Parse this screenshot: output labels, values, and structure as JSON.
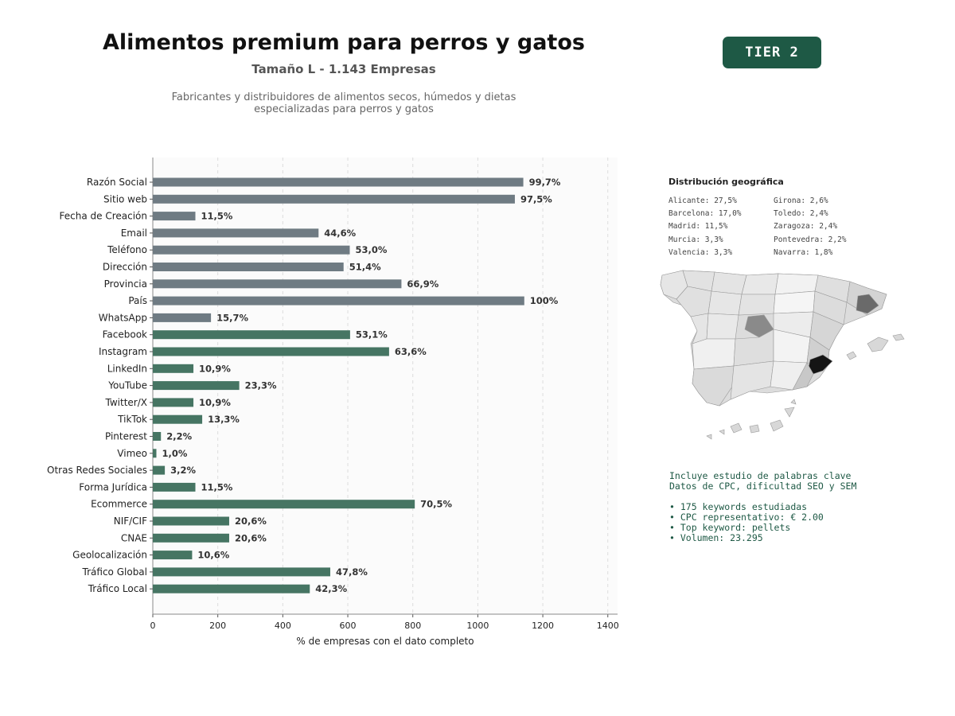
{
  "header": {
    "title": "Alimentos premium para perros y gatos",
    "subtitle": "Tamaño L - 1.143 Empresas",
    "description_line1": "Fabricantes y distribuidores de alimentos secos, húmedos y dietas",
    "description_line2": "especializadas para perros y gatos",
    "tier_badge": "TIER 2"
  },
  "chart_data": {
    "type": "bar",
    "orientation": "horizontal",
    "categories": [
      "Razón Social",
      "Sitio web",
      "Fecha de Creación",
      "Email",
      "Teléfono",
      "Dirección",
      "Provincia",
      "País",
      "WhatsApp",
      "Facebook",
      "Instagram",
      "LinkedIn",
      "YouTube",
      "Twitter/X",
      "TikTok",
      "Pinterest",
      "Vimeo",
      "Otras Redes Sociales",
      "Forma Jurídica",
      "Ecommerce",
      "NIF/CIF",
      "CNAE",
      "Geolocalización",
      "Tráfico Global",
      "Tráfico Local"
    ],
    "values": [
      1140,
      1114,
      131,
      510,
      606,
      587,
      765,
      1143,
      179,
      607,
      727,
      125,
      266,
      125,
      152,
      25,
      11,
      37,
      131,
      806,
      235,
      235,
      121,
      546,
      483
    ],
    "labels": [
      "99,7%",
      "97,5%",
      "11,5%",
      "44,6%",
      "53,0%",
      "51,4%",
      "66,9%",
      "100%",
      "15,7%",
      "53,1%",
      "63,6%",
      "10,9%",
      "23,3%",
      "10,9%",
      "13,3%",
      "2,2%",
      "1,0%",
      "3,2%",
      "11,5%",
      "70,5%",
      "20,6%",
      "20,6%",
      "10,6%",
      "47,8%",
      "42,3%"
    ],
    "group_split_index": 9,
    "group_colors": [
      "#6f7b83",
      "#467563"
    ],
    "xlim": [
      0,
      1430
    ],
    "xticks": [
      0,
      200,
      400,
      600,
      800,
      1000,
      1200,
      1400
    ],
    "xlabel": "% de empresas con el dato completo",
    "ylabel": "",
    "grid": "x dashed",
    "legend": "none"
  },
  "geo": {
    "title": "Distribución geográfica",
    "col1": [
      "Alicante: 27,5%",
      "Barcelona: 17,0%",
      "Madrid: 11,5%",
      "Murcia: 3,3%",
      "Valencia: 3,3%"
    ],
    "col2": [
      "Girona: 2,6%",
      "Toledo: 2,4%",
      "Zaragoza: 2,4%",
      "Pontevedra: 2,2%",
      "Navarra: 1,8%"
    ]
  },
  "keywords": {
    "line1": "Incluye estudio de palabras clave",
    "line2": "Datos de CPC, dificultad SEO y SEM",
    "bullets": [
      "• 175 keywords estudiadas",
      "• CPC representativo: € 2.00",
      "• Top keyword: pellets",
      "• Volumen: 23.295"
    ]
  },
  "colors": {
    "accent": "#1e5945",
    "bar_primary": "#6f7b83",
    "bar_secondary": "#467563"
  }
}
